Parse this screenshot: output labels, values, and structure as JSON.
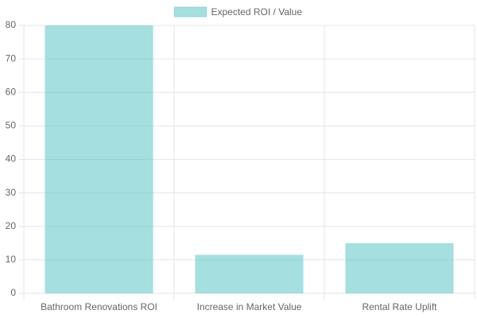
{
  "chart_data": {
    "type": "bar",
    "categories": [
      "Bathroom Renovations ROI",
      "Increase in Market Value",
      "Rental Rate Uplift"
    ],
    "series": [
      {
        "name": "Expected ROI / Value",
        "color": "#4bc0c0",
        "values": [
          80,
          11.5,
          15
        ]
      }
    ],
    "ylim": [
      0,
      80
    ],
    "yticks": [
      0,
      10,
      20,
      30,
      40,
      50,
      60,
      70,
      80
    ],
    "grid": true,
    "legend": "top"
  }
}
